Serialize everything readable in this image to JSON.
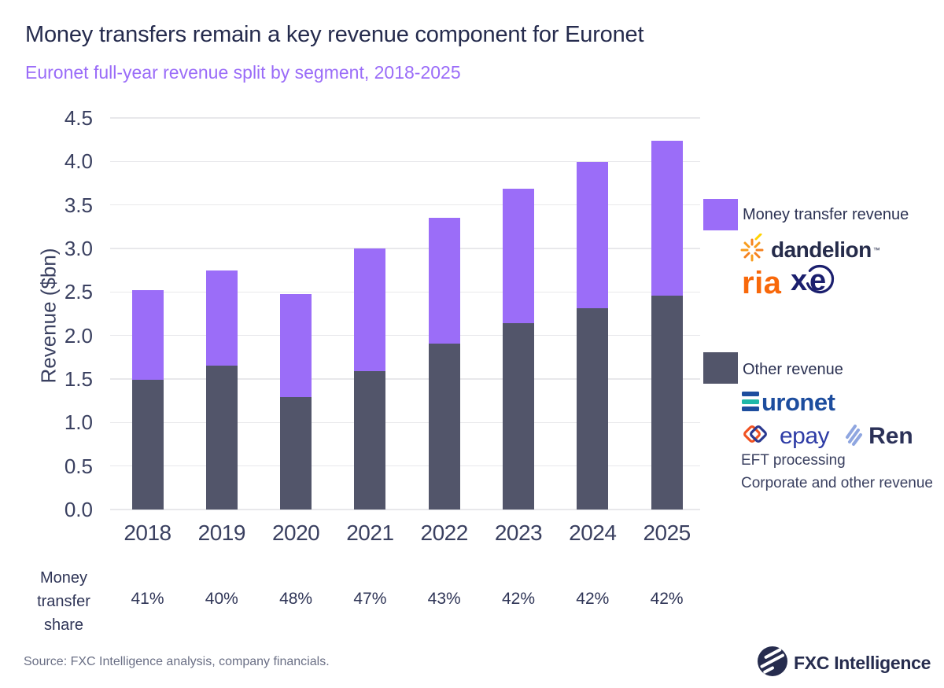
{
  "header": {
    "title": "Money transfers remain a key revenue component for Euronet",
    "subtitle": "Euronet full-year revenue split by segment, 2018-2025"
  },
  "chart_data": {
    "type": "bar",
    "stacked": true,
    "title": "Money transfers remain a key revenue component for Euronet",
    "subtitle": "Euronet full-year revenue split by segment, 2018-2025",
    "categories": [
      "2018",
      "2019",
      "2020",
      "2021",
      "2022",
      "2023",
      "2024",
      "2025"
    ],
    "series": [
      {
        "name": "Other revenue",
        "color": "#52556a",
        "values": [
          1.49,
          1.65,
          1.29,
          1.59,
          1.91,
          2.14,
          2.31,
          2.46
        ]
      },
      {
        "name": "Money transfer revenue",
        "color": "#9b6df8",
        "values": [
          1.03,
          1.1,
          1.19,
          1.41,
          1.44,
          1.55,
          1.68,
          1.78
        ]
      }
    ],
    "totals": [
      2.52,
      2.75,
      2.48,
      3.0,
      3.35,
      3.69,
      3.99,
      4.24
    ],
    "xlabel": "",
    "ylabel": "Revenue ($bn)",
    "ylim": [
      0,
      4.5
    ],
    "ytick_step": 0.5,
    "grid": "horizontal",
    "legend_position": "right",
    "money_transfer_share": [
      "41%",
      "40%",
      "48%",
      "47%",
      "43%",
      "42%",
      "42%",
      "42%"
    ]
  },
  "share_row": {
    "label": "Money\ntransfer\nshare",
    "values": [
      "41%",
      "40%",
      "48%",
      "47%",
      "43%",
      "42%",
      "42%",
      "42%"
    ]
  },
  "legend": {
    "money_transfer": {
      "label": "Money transfer revenue",
      "swatch_color": "#9b6df8"
    },
    "other": {
      "label": "Other revenue",
      "swatch_color": "#52556a",
      "sub_items": [
        "EFT processing",
        "Corporate and other revenue"
      ]
    }
  },
  "brands": {
    "dandelion": "dandelion",
    "dandelion_tm": "™",
    "ria": "ria",
    "xe_x": "x",
    "xe_e": "e",
    "euronet_rest": "uronet",
    "epay": "epay",
    "ren": "Ren"
  },
  "footer": {
    "source": "Source: FXC Intelligence analysis, company financials.",
    "brand": "FXC Intelligence"
  },
  "colors": {
    "money_transfer": "#9b6df8",
    "other": "#52556a",
    "title_text": "#252b4d",
    "subtitle_text": "#9a6cf8",
    "axis_text": "#3a4060",
    "gridline": "#e8e8eb",
    "source_text": "#6a6f85",
    "dandelion_orange": "#f89c1c",
    "dandelion_yellow": "#ffd200",
    "ria_orange": "#f8680a",
    "xe_navy": "#1b1f6e",
    "euronet_blue": "#1d4d9e",
    "euronet_teal": "#1fb8a8",
    "epay_orange": "#f05323",
    "epay_blue": "#2b3990",
    "ren_periwinkle": "#8fa6e0",
    "fxc_navy": "#262c4e"
  }
}
